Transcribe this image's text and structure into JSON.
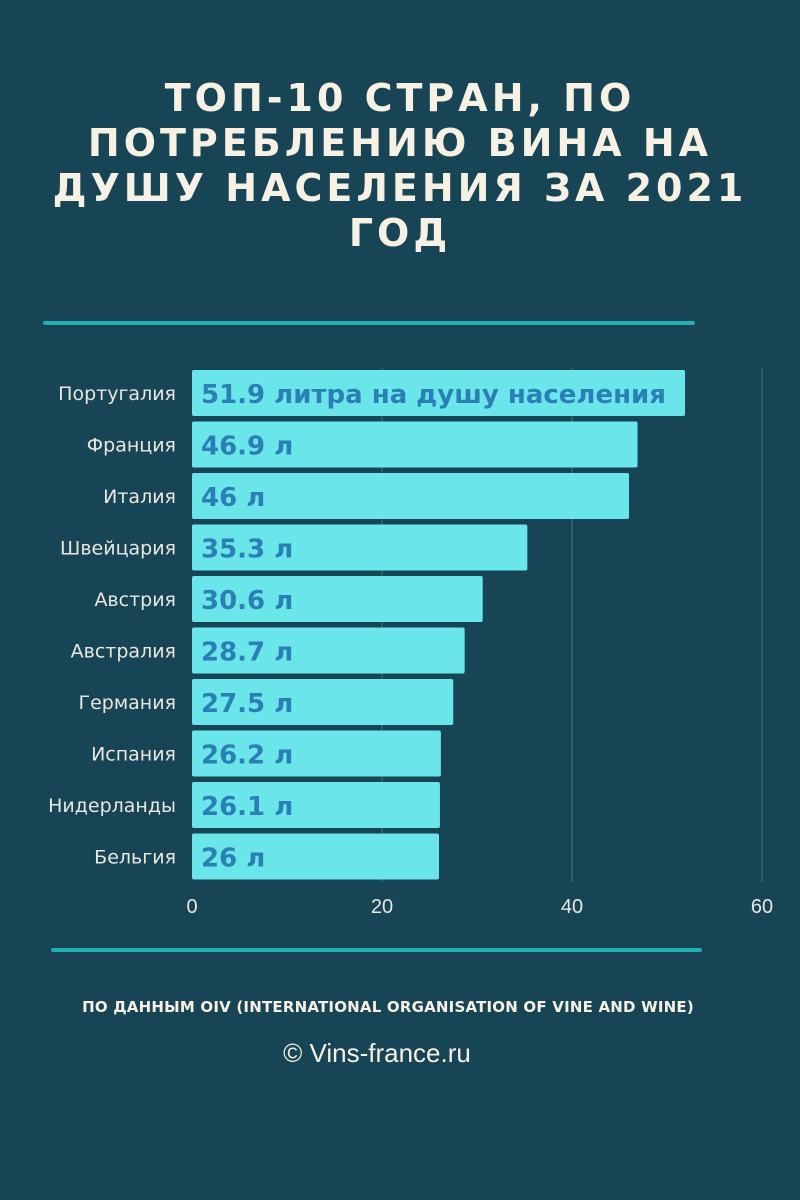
{
  "title": "Топ-10 стран, по потреблению вина на душу населения за 2021 год",
  "source": "по данным OIV (International Organisation of Vine and Wine)",
  "copyright": "© Vins-france.ru",
  "colors": {
    "background": "#174555",
    "bar": "#6ae6ea",
    "bar_label": "#2a7fb5",
    "accent_rule": "#1fb2b1",
    "text_light": "#f6f1e3",
    "category_text": "#e8e8e0",
    "gridline": "#4d7480"
  },
  "chart_data": {
    "type": "bar",
    "orientation": "horizontal",
    "categories": [
      "Португалия",
      "Франция",
      "Италия",
      "Швейцария",
      "Австрия",
      "Австралия",
      "Германия",
      "Испания",
      "Нидерланды",
      "Бельгия"
    ],
    "values": [
      51.9,
      46.9,
      46,
      35.3,
      30.6,
      28.7,
      27.5,
      26.2,
      26.1,
      26
    ],
    "data_labels": [
      "51.9 литра на душу населения",
      "46.9 л",
      "46 л",
      "35.3 л",
      "30.6 л",
      "28.7 л",
      "27.5 л",
      "26.2 л",
      "26.1 л",
      "26 л"
    ],
    "xlim": [
      0,
      60
    ],
    "xticks": [
      0,
      20,
      40,
      60
    ],
    "xtick_labels": [
      "0",
      "20",
      "40",
      "60"
    ],
    "grid": true,
    "legend": "none"
  }
}
